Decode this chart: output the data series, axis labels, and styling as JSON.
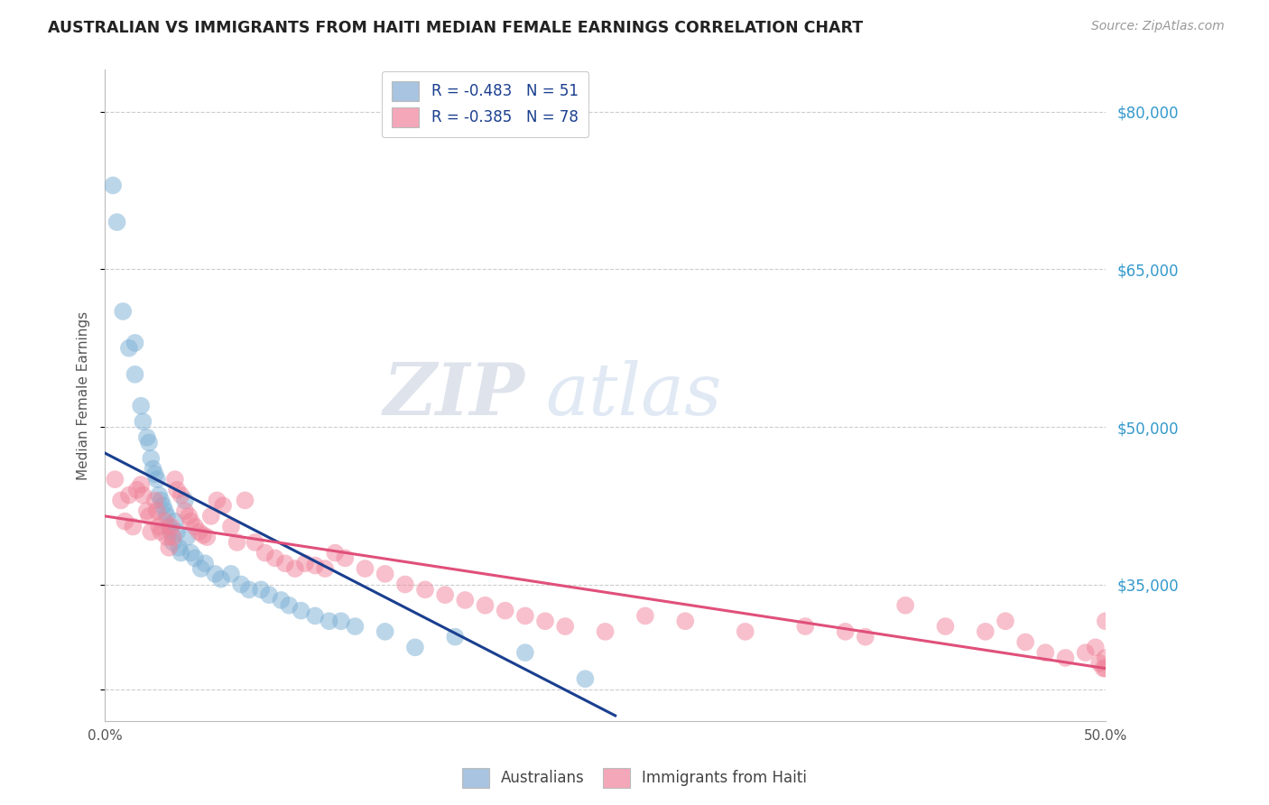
{
  "title": "AUSTRALIAN VS IMMIGRANTS FROM HAITI MEDIAN FEMALE EARNINGS CORRELATION CHART",
  "source": "Source: ZipAtlas.com",
  "ylabel": "Median Female Earnings",
  "y_ticks": [
    25000,
    35000,
    50000,
    65000,
    80000
  ],
  "y_tick_labels": [
    "",
    "$35,000",
    "$50,000",
    "$65,000",
    "$80,000"
  ],
  "x_ticks": [
    0.0,
    0.1,
    0.2,
    0.3,
    0.4,
    0.5
  ],
  "x_tick_labels": [
    "0.0%",
    "",
    "",
    "",
    "",
    "50.0%"
  ],
  "watermark_zip": "ZIP",
  "watermark_atlas": "atlas",
  "legend_blue_label": "R = -0.483   N = 51",
  "legend_pink_label": "R = -0.385   N = 78",
  "legend_blue_color": "#a8c4e0",
  "legend_pink_color": "#f4a7b9",
  "dot_blue_color": "#7bafd4",
  "dot_pink_color": "#f0839a",
  "line_blue_color": "#1a3f8f",
  "line_pink_color": "#e0507a",
  "background_color": "#ffffff",
  "title_color": "#222222",
  "axis_label_color": "#555555",
  "right_tick_color": "#3399cc",
  "grid_color": "#cccccc",
  "xlim": [
    0.0,
    0.5
  ],
  "ylim": [
    22000,
    84000
  ],
  "blue_scatter_x": [
    0.004,
    0.006,
    0.009,
    0.012,
    0.015,
    0.015,
    0.018,
    0.019,
    0.021,
    0.022,
    0.023,
    0.024,
    0.025,
    0.026,
    0.027,
    0.028,
    0.029,
    0.03,
    0.031,
    0.032,
    0.033,
    0.034,
    0.035,
    0.036,
    0.037,
    0.038,
    0.04,
    0.041,
    0.043,
    0.045,
    0.048,
    0.05,
    0.055,
    0.058,
    0.063,
    0.068,
    0.072,
    0.078,
    0.082,
    0.088,
    0.092,
    0.098,
    0.105,
    0.112,
    0.118,
    0.125,
    0.14,
    0.155,
    0.175,
    0.21,
    0.24
  ],
  "blue_scatter_y": [
    73000,
    69500,
    61000,
    57500,
    55000,
    58000,
    52000,
    50500,
    49000,
    48500,
    47000,
    46000,
    45500,
    45000,
    43500,
    43000,
    42500,
    42000,
    41500,
    40500,
    40000,
    39000,
    41000,
    40000,
    38500,
    38000,
    43000,
    39500,
    38000,
    37500,
    36500,
    37000,
    36000,
    35500,
    36000,
    35000,
    34500,
    34500,
    34000,
    33500,
    33000,
    32500,
    32000,
    31500,
    31500,
    31000,
    30500,
    29000,
    30000,
    28500,
    26000
  ],
  "pink_scatter_x": [
    0.005,
    0.008,
    0.01,
    0.012,
    0.014,
    0.016,
    0.018,
    0.019,
    0.021,
    0.022,
    0.023,
    0.025,
    0.026,
    0.027,
    0.028,
    0.03,
    0.031,
    0.032,
    0.033,
    0.034,
    0.035,
    0.036,
    0.038,
    0.04,
    0.042,
    0.043,
    0.045,
    0.047,
    0.049,
    0.051,
    0.053,
    0.056,
    0.059,
    0.063,
    0.066,
    0.07,
    0.075,
    0.08,
    0.085,
    0.09,
    0.095,
    0.1,
    0.105,
    0.11,
    0.115,
    0.12,
    0.13,
    0.14,
    0.15,
    0.16,
    0.17,
    0.18,
    0.19,
    0.2,
    0.21,
    0.22,
    0.23,
    0.25,
    0.27,
    0.29,
    0.32,
    0.35,
    0.37,
    0.38,
    0.4,
    0.42,
    0.44,
    0.45,
    0.46,
    0.47,
    0.48,
    0.49,
    0.495,
    0.497,
    0.499,
    0.5,
    0.5,
    0.5
  ],
  "pink_scatter_y": [
    45000,
    43000,
    41000,
    43500,
    40500,
    44000,
    44500,
    43500,
    42000,
    41500,
    40000,
    43000,
    42000,
    40500,
    40000,
    41000,
    39500,
    38500,
    40500,
    39500,
    45000,
    44000,
    43500,
    42000,
    41500,
    41000,
    40500,
    40000,
    39700,
    39500,
    41500,
    43000,
    42500,
    40500,
    39000,
    43000,
    39000,
    38000,
    37500,
    37000,
    36500,
    37000,
    36800,
    36500,
    38000,
    37500,
    36500,
    36000,
    35000,
    34500,
    34000,
    33500,
    33000,
    32500,
    32000,
    31500,
    31000,
    30500,
    32000,
    31500,
    30500,
    31000,
    30500,
    30000,
    33000,
    31000,
    30500,
    31500,
    29500,
    28500,
    28000,
    28500,
    29000,
    27500,
    27000,
    28000,
    27000,
    31500
  ],
  "blue_line_x": [
    0.0,
    0.255
  ],
  "blue_line_y": [
    47500,
    22500
  ],
  "pink_line_x": [
    0.0,
    0.5
  ],
  "pink_line_y": [
    41500,
    27000
  ]
}
